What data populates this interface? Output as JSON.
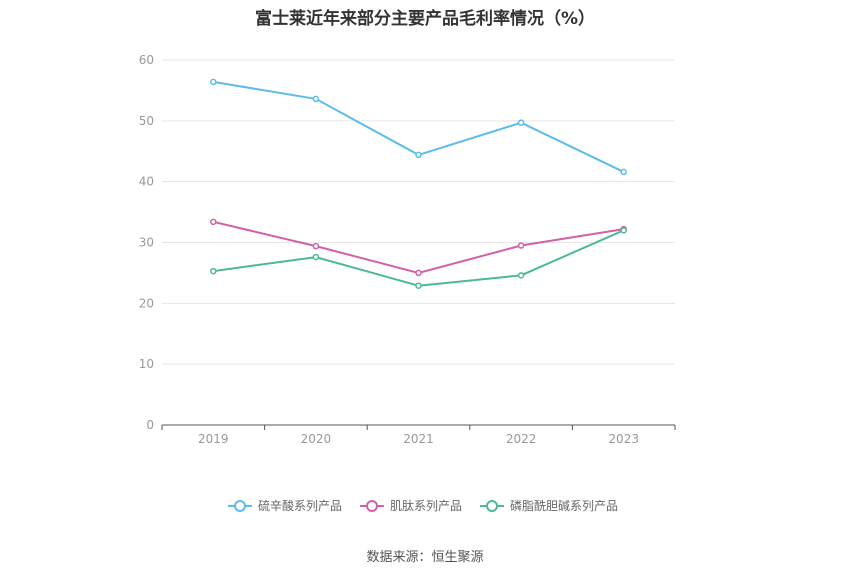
{
  "chart_data": {
    "type": "line",
    "title": "富士莱近年来部分主要产品毛利率情况（%）",
    "categories": [
      "2019",
      "2020",
      "2021",
      "2022",
      "2023"
    ],
    "series": [
      {
        "name": "硫辛酸系列产品",
        "values": [
          56.4,
          53.6,
          44.4,
          49.7,
          41.6
        ],
        "color": "#5bbcec"
      },
      {
        "name": "肌肽系列产品",
        "values": [
          33.4,
          29.4,
          25.0,
          29.5,
          32.2
        ],
        "color": "#d260a8"
      },
      {
        "name": "磷脂酰胆碱系列产品",
        "values": [
          25.3,
          27.6,
          22.9,
          24.6,
          32.0
        ],
        "color": "#4cb89a"
      }
    ],
    "yticks": [
      "0",
      "10",
      "20",
      "30",
      "40",
      "50",
      "60"
    ],
    "ylim": [
      0,
      60
    ],
    "grid": true,
    "legend_position": "bottom"
  },
  "source": "数据来源：恒生聚源"
}
